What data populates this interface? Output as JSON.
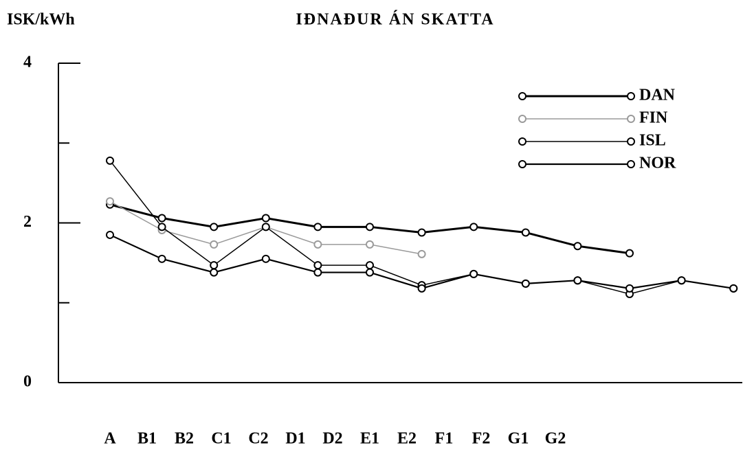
{
  "chart_data": {
    "type": "line",
    "title": "IÐNAÐUR ÁN SKATTA",
    "y_label": "ISK/kWh",
    "categories": [
      "A",
      "B1",
      "B2",
      "C1",
      "C2",
      "D1",
      "D2",
      "E1",
      "E2",
      "F1",
      "F2",
      "G1",
      "G2"
    ],
    "series": [
      {
        "name": "DAN",
        "color": "#000000",
        "width": 3,
        "values": [
          2.23,
          2.06,
          1.95,
          2.06,
          1.95,
          1.95,
          1.88,
          1.95,
          1.88,
          1.71,
          1.62,
          null,
          null
        ]
      },
      {
        "name": "FIN",
        "color": "#9a9a9a",
        "width": 1.5,
        "values": [
          2.27,
          1.91,
          1.73,
          1.95,
          1.73,
          1.73,
          1.61,
          null,
          null,
          null,
          null,
          null,
          null
        ]
      },
      {
        "name": "ISL",
        "color": "#000000",
        "width": 1.5,
        "values": [
          2.78,
          1.95,
          1.47,
          1.95,
          1.47,
          1.47,
          1.22,
          1.36,
          1.24,
          1.28,
          1.11,
          1.28,
          1.18
        ]
      },
      {
        "name": "NOR",
        "color": "#000000",
        "width": 2.2,
        "values": [
          1.85,
          1.55,
          1.38,
          1.55,
          1.38,
          1.38,
          1.18,
          1.36,
          1.24,
          1.28,
          1.18,
          1.28,
          1.18
        ]
      }
    ],
    "ylim": [
      0,
      4
    ],
    "yticks": [
      0,
      2,
      4
    ],
    "yminorticks": [
      1,
      3
    ],
    "legend": "top-right",
    "grid": false
  }
}
